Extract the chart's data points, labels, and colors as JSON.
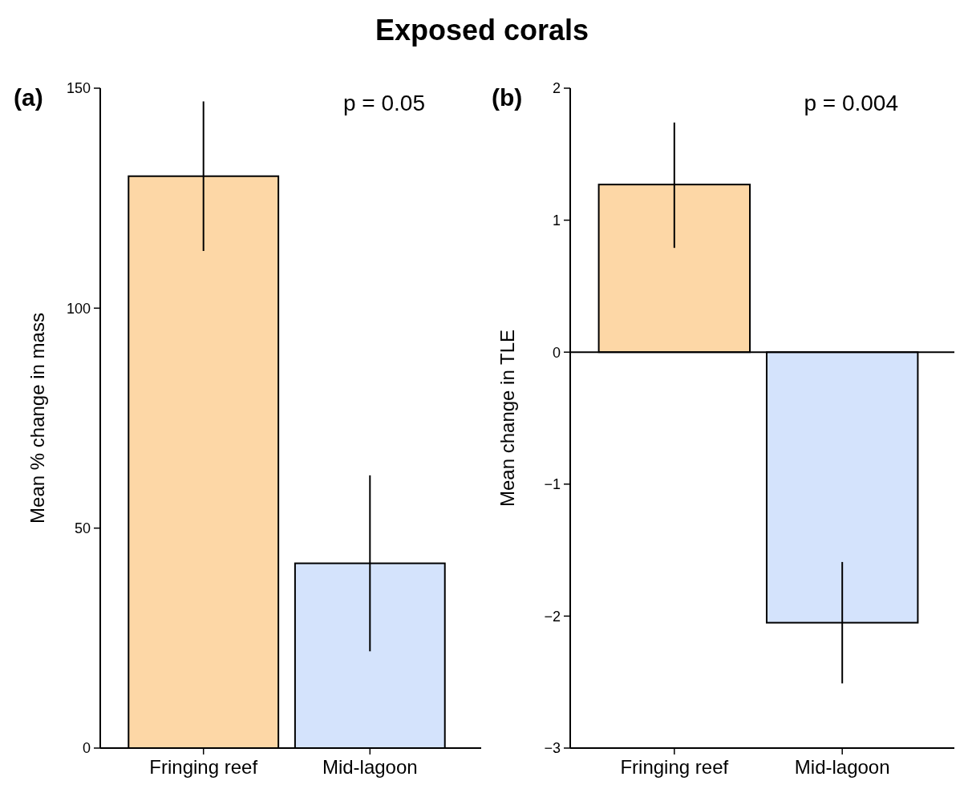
{
  "chart_data": [
    {
      "type": "bar",
      "title": "Exposed corals",
      "categories": [
        "Fringing reef",
        "Mid-lagoon"
      ],
      "values": [
        130,
        42
      ],
      "colors": [
        "#fdd7a6",
        "#d4e3fc"
      ],
      "errors": [
        [
          113,
          147
        ],
        [
          22,
          62
        ]
      ],
      "ylabel": "Mean % change in mass",
      "ylim": [
        0,
        150
      ],
      "yticks": [
        0,
        50,
        100,
        150
      ],
      "annotations": [
        "(a)",
        "p = 0.05"
      ]
    },
    {
      "type": "bar",
      "categories": [
        "Fringing reef",
        "Mid-lagoon"
      ],
      "values": [
        1.27,
        -2.05
      ],
      "colors": [
        "#fdd7a6",
        "#d4e3fc"
      ],
      "errors": [
        [
          0.79,
          1.74
        ],
        [
          -2.51,
          -1.59
        ]
      ],
      "ylabel": "Mean change in TLE",
      "ylim": [
        -3,
        2
      ],
      "yticks": [
        2,
        1,
        0,
        {
          "value": -1,
          "label": "−1"
        },
        {
          "value": -2,
          "label": "−2"
        },
        {
          "value": -3,
          "label": "−3"
        }
      ],
      "annotations": [
        "(b)",
        "p = 0.004"
      ]
    }
  ]
}
